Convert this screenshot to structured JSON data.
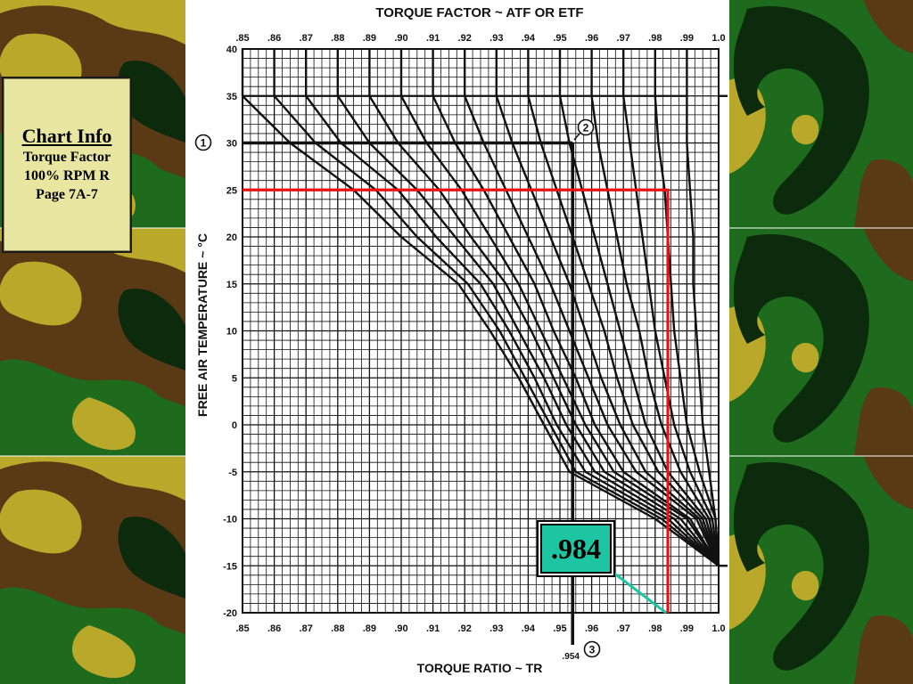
{
  "slide": {
    "info_box": {
      "title": "Chart Info",
      "lines": [
        "Torque Factor",
        "100% RPM R",
        "Page 7A-7"
      ]
    },
    "callout_value": ".984"
  },
  "colors": {
    "grid": "#111111",
    "curves": "#111111",
    "reading_line": "#ee1111",
    "callout_fill": "#1dc5a3",
    "camo": [
      "#5a3a14",
      "#b9a829",
      "#1e6b1e",
      "#0c2a0c"
    ]
  },
  "chart_data": {
    "type": "line",
    "title": "TORQUE FACTOR ~ ATF OR ETF",
    "xlabel": "TORQUE RATIO ~ TR",
    "ylabel": "FREE AIR TEMPERATURE ~ °C",
    "xlim": [
      0.85,
      1.0
    ],
    "ylim": [
      -20,
      40
    ],
    "x_ticks": [
      ".85",
      ".86",
      ".87",
      ".88",
      ".89",
      ".90",
      ".91",
      ".92",
      ".93",
      ".94",
      ".95",
      ".96",
      ".97",
      ".98",
      ".99",
      "1.0"
    ],
    "y_ticks": [
      "40",
      "35",
      "30",
      "25",
      "20",
      "15",
      "10",
      "5",
      "0",
      "-5",
      "-10",
      "-15",
      "-20"
    ],
    "grid": true,
    "series": [
      {
        "points": [
          [
            0.85,
            35
          ],
          [
            0.865,
            30
          ],
          [
            0.885,
            25
          ],
          [
            0.9,
            20
          ],
          [
            0.918,
            15
          ],
          [
            0.928,
            10
          ],
          [
            0.937,
            5
          ],
          [
            0.945,
            0
          ],
          [
            0.953,
            -5
          ],
          [
            0.98,
            -10
          ],
          [
            1.0,
            -15
          ]
        ]
      },
      {
        "points": [
          [
            0.86,
            35
          ],
          [
            0.873,
            30
          ],
          [
            0.892,
            25
          ],
          [
            0.905,
            20
          ],
          [
            0.921,
            15
          ],
          [
            0.931,
            10
          ],
          [
            0.939,
            5
          ],
          [
            0.947,
            0
          ],
          [
            0.955,
            -5
          ],
          [
            0.982,
            -10
          ],
          [
            1.0,
            -15
          ]
        ]
      },
      {
        "points": [
          [
            0.87,
            35
          ],
          [
            0.881,
            30
          ],
          [
            0.899,
            25
          ],
          [
            0.911,
            20
          ],
          [
            0.925,
            15
          ],
          [
            0.934,
            10
          ],
          [
            0.942,
            5
          ],
          [
            0.949,
            0
          ],
          [
            0.958,
            -5
          ],
          [
            0.984,
            -10
          ],
          [
            1.0,
            -15
          ]
        ]
      },
      {
        "points": [
          [
            0.88,
            35
          ],
          [
            0.89,
            30
          ],
          [
            0.905,
            25
          ],
          [
            0.917,
            20
          ],
          [
            0.929,
            15
          ],
          [
            0.937,
            10
          ],
          [
            0.945,
            5
          ],
          [
            0.952,
            0
          ],
          [
            0.961,
            -5
          ],
          [
            0.986,
            -10
          ],
          [
            1.0,
            -15
          ]
        ]
      },
      {
        "points": [
          [
            0.89,
            35
          ],
          [
            0.899,
            30
          ],
          [
            0.912,
            25
          ],
          [
            0.922,
            20
          ],
          [
            0.933,
            15
          ],
          [
            0.941,
            10
          ],
          [
            0.948,
            5
          ],
          [
            0.955,
            0
          ],
          [
            0.964,
            -5
          ],
          [
            0.988,
            -10
          ],
          [
            1.0,
            -15
          ]
        ]
      },
      {
        "points": [
          [
            0.9,
            35
          ],
          [
            0.908,
            30
          ],
          [
            0.919,
            25
          ],
          [
            0.928,
            20
          ],
          [
            0.937,
            15
          ],
          [
            0.944,
            10
          ],
          [
            0.951,
            5
          ],
          [
            0.958,
            0
          ],
          [
            0.967,
            -5
          ],
          [
            0.99,
            -10
          ],
          [
            1.0,
            -15
          ]
        ]
      },
      {
        "points": [
          [
            0.91,
            35
          ],
          [
            0.917,
            30
          ],
          [
            0.926,
            25
          ],
          [
            0.934,
            20
          ],
          [
            0.942,
            15
          ],
          [
            0.948,
            10
          ],
          [
            0.955,
            5
          ],
          [
            0.961,
            0
          ],
          [
            0.97,
            -5
          ],
          [
            0.991,
            -10
          ],
          [
            1.0,
            -15
          ]
        ]
      },
      {
        "points": [
          [
            0.92,
            35
          ],
          [
            0.926,
            30
          ],
          [
            0.933,
            25
          ],
          [
            0.94,
            20
          ],
          [
            0.947,
            15
          ],
          [
            0.953,
            10
          ],
          [
            0.959,
            5
          ],
          [
            0.965,
            0
          ],
          [
            0.974,
            -5
          ],
          [
            0.993,
            -10
          ],
          [
            1.0,
            -15
          ]
        ]
      },
      {
        "points": [
          [
            0.93,
            35
          ],
          [
            0.935,
            30
          ],
          [
            0.941,
            25
          ],
          [
            0.947,
            20
          ],
          [
            0.953,
            15
          ],
          [
            0.958,
            10
          ],
          [
            0.963,
            5
          ],
          [
            0.969,
            0
          ],
          [
            0.977,
            -5
          ],
          [
            0.994,
            -10
          ],
          [
            1.0,
            -15
          ]
        ]
      },
      {
        "points": [
          [
            0.94,
            35
          ],
          [
            0.944,
            30
          ],
          [
            0.949,
            25
          ],
          [
            0.954,
            20
          ],
          [
            0.959,
            15
          ],
          [
            0.964,
            10
          ],
          [
            0.968,
            5
          ],
          [
            0.973,
            0
          ],
          [
            0.981,
            -5
          ],
          [
            0.995,
            -10
          ],
          [
            1.0,
            -15
          ]
        ]
      },
      {
        "points": [
          [
            0.95,
            35
          ],
          [
            0.953,
            30
          ],
          [
            0.957,
            25
          ],
          [
            0.961,
            20
          ],
          [
            0.965,
            15
          ],
          [
            0.969,
            10
          ],
          [
            0.973,
            5
          ],
          [
            0.977,
            0
          ],
          [
            0.984,
            -5
          ],
          [
            0.996,
            -10
          ],
          [
            1.0,
            -15
          ]
        ]
      },
      {
        "points": [
          [
            0.96,
            35
          ],
          [
            0.962,
            30
          ],
          [
            0.965,
            25
          ],
          [
            0.968,
            20
          ],
          [
            0.971,
            15
          ],
          [
            0.975,
            10
          ],
          [
            0.978,
            5
          ],
          [
            0.982,
            0
          ],
          [
            0.988,
            -5
          ],
          [
            0.997,
            -10
          ],
          [
            1.0,
            -15
          ]
        ]
      },
      {
        "points": [
          [
            0.97,
            35
          ],
          [
            0.972,
            30
          ],
          [
            0.974,
            25
          ],
          [
            0.976,
            20
          ],
          [
            0.978,
            15
          ],
          [
            0.98,
            10
          ],
          [
            0.983,
            5
          ],
          [
            0.986,
            0
          ],
          [
            0.991,
            -5
          ],
          [
            0.998,
            -10
          ],
          [
            1.0,
            -15
          ]
        ]
      },
      {
        "points": [
          [
            0.98,
            35
          ],
          [
            0.981,
            30
          ],
          [
            0.983,
            25
          ],
          [
            0.984,
            20
          ],
          [
            0.985,
            15
          ],
          [
            0.986,
            10
          ],
          [
            0.988,
            5
          ],
          [
            0.99,
            0
          ],
          [
            0.994,
            -5
          ],
          [
            0.999,
            -10
          ],
          [
            1.0,
            -15
          ]
        ]
      },
      {
        "points": [
          [
            0.99,
            35
          ],
          [
            0.99,
            30
          ],
          [
            0.991,
            25
          ],
          [
            0.992,
            20
          ],
          [
            0.992,
            15
          ],
          [
            0.993,
            10
          ],
          [
            0.994,
            5
          ],
          [
            0.995,
            0
          ],
          [
            0.997,
            -5
          ],
          [
            0.999,
            -10
          ],
          [
            1.0,
            -15
          ]
        ]
      }
    ],
    "annotations": [
      {
        "marker": "1",
        "type": "temperature_line",
        "y": 30,
        "x_end": 0.954
      },
      {
        "marker": "2",
        "type": "curve_label"
      },
      {
        "marker": "3",
        "type": "torque_ratio_line",
        "x": 0.954,
        "label": ".954"
      }
    ],
    "reading_path": {
      "y": 25,
      "x": 0.984,
      "result": ".984"
    }
  }
}
